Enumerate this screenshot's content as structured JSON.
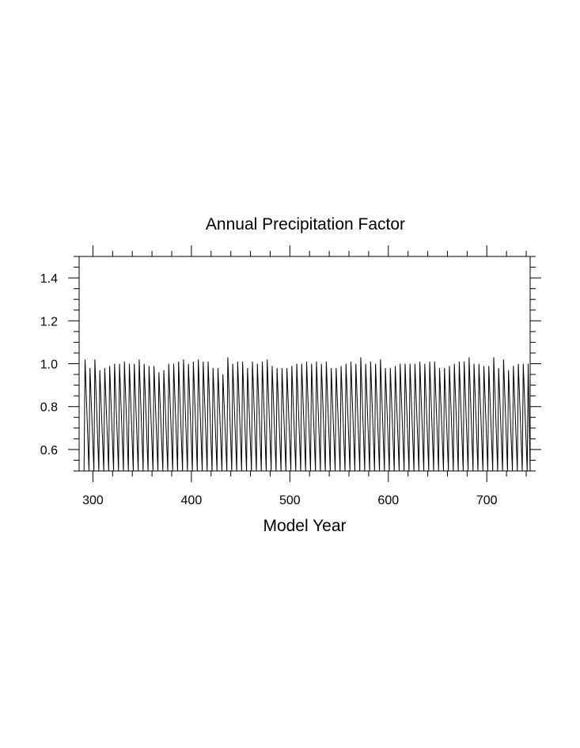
{
  "chart_data": {
    "type": "line",
    "title": "Annual Precipitation Factor",
    "xlabel": "Model Year",
    "ylabel": "",
    "xlim": [
      286,
      744
    ],
    "ylim": [
      0.5,
      1.5
    ],
    "x_ticks": [
      300,
      400,
      500,
      600,
      700
    ],
    "x_tick_labels": [
      "300",
      "400",
      "500",
      "600",
      "700"
    ],
    "y_ticks": [
      0.6,
      0.8,
      1.0,
      1.2,
      1.4
    ],
    "y_tick_labels": [
      "0.6",
      "0.8",
      "1.0",
      "1.2",
      "1.4"
    ],
    "grid": false,
    "line_color": "#000000",
    "series": [
      {
        "cycle_start_year": 291,
        "cycle_length_years": 5,
        "minimum_value": 0.5,
        "peak_values": [
          1.02,
          0.98,
          1.02,
          0.97,
          0.98,
          0.99,
          1.0,
          1.0,
          1.01,
          1.0,
          1.0,
          1.02,
          1.0,
          0.99,
          0.99,
          0.96,
          0.97,
          1.0,
          1.0,
          1.01,
          1.02,
          1.0,
          1.01,
          1.02,
          1.01,
          1.01,
          0.98,
          0.98,
          0.95,
          1.03,
          1.0,
          1.01,
          1.01,
          0.98,
          1.01,
          1.0,
          1.01,
          1.02,
          0.99,
          0.98,
          0.98,
          0.98,
          0.99,
          1.0,
          1.0,
          1.01,
          1.0,
          1.01,
          1.0,
          1.01,
          0.98,
          0.98,
          0.99,
          1.0,
          1.01,
          1.0,
          1.03,
          1.0,
          1.01,
          1.0,
          1.02,
          0.98,
          0.98,
          0.99,
          1.0,
          1.0,
          1.0,
          1.0,
          1.01,
          1.0,
          1.01,
          1.01,
          0.98,
          0.98,
          0.99,
          1.0,
          1.01,
          1.01,
          1.03,
          1.0,
          1.0,
          0.99,
          0.99,
          1.03,
          0.98,
          1.02,
          0.97,
          0.99,
          1.0,
          1.0,
          1.0
        ]
      }
    ]
  }
}
